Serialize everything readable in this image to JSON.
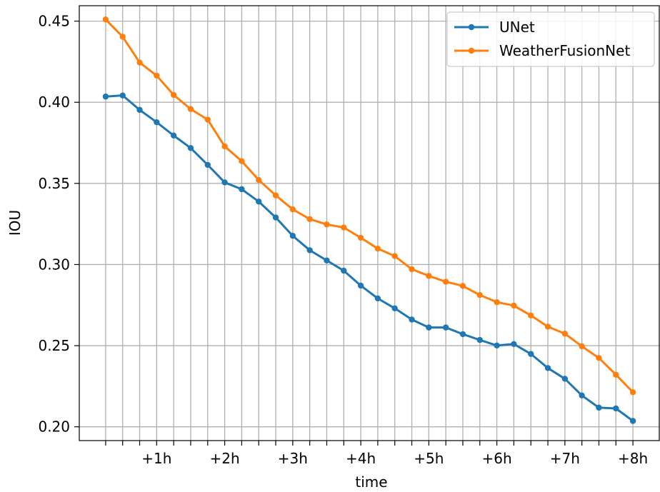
{
  "chart_data": {
    "type": "line",
    "title": "",
    "xlabel": "time",
    "ylabel": "IOU",
    "x": [
      1,
      2,
      3,
      4,
      5,
      6,
      7,
      8,
      9,
      10,
      11,
      12,
      13,
      14,
      15,
      16,
      17,
      18,
      19,
      20,
      21,
      22,
      23,
      24,
      25,
      26,
      27,
      28,
      29,
      30,
      31,
      32
    ],
    "xlim": [
      -0.55,
      33.55
    ],
    "ylim": [
      0.1915,
      0.4595
    ],
    "x_tick_labels": [
      {
        "x": 4,
        "label": "+1h"
      },
      {
        "x": 8,
        "label": "+2h"
      },
      {
        "x": 12,
        "label": "+3h"
      },
      {
        "x": 16,
        "label": "+4h"
      },
      {
        "x": 20,
        "label": "+5h"
      },
      {
        "x": 24,
        "label": "+6h"
      },
      {
        "x": 28,
        "label": "+7h"
      },
      {
        "x": 32,
        "label": "+8h"
      }
    ],
    "y_ticks": [
      0.2,
      0.25,
      0.3,
      0.35,
      0.4,
      0.45
    ],
    "y_tick_labels": [
      "0.20",
      "0.25",
      "0.30",
      "0.35",
      "0.40",
      "0.45"
    ],
    "grid": true,
    "legend_position": "top-right",
    "series": [
      {
        "name": "UNet",
        "color": "#1f77b4",
        "values": [
          0.4035,
          0.4042,
          0.3953,
          0.3877,
          0.3795,
          0.3718,
          0.3614,
          0.3506,
          0.3464,
          0.3388,
          0.329,
          0.3177,
          0.3088,
          0.3025,
          0.2962,
          0.287,
          0.2791,
          0.273,
          0.2661,
          0.2612,
          0.2612,
          0.2571,
          0.2535,
          0.2501,
          0.251,
          0.2449,
          0.2362,
          0.2296,
          0.2193,
          0.2118,
          0.2113,
          0.2036
        ]
      },
      {
        "name": "WeatherFusionNet",
        "color": "#ff7f0e",
        "values": [
          0.451,
          0.4404,
          0.4245,
          0.4164,
          0.4045,
          0.3958,
          0.3893,
          0.3728,
          0.3637,
          0.3521,
          0.3426,
          0.334,
          0.328,
          0.3247,
          0.3228,
          0.3165,
          0.3098,
          0.3052,
          0.2971,
          0.293,
          0.2894,
          0.2868,
          0.2812,
          0.2768,
          0.2747,
          0.2686,
          0.2617,
          0.2574,
          0.2496,
          0.2424,
          0.2321,
          0.2213
        ]
      }
    ]
  }
}
